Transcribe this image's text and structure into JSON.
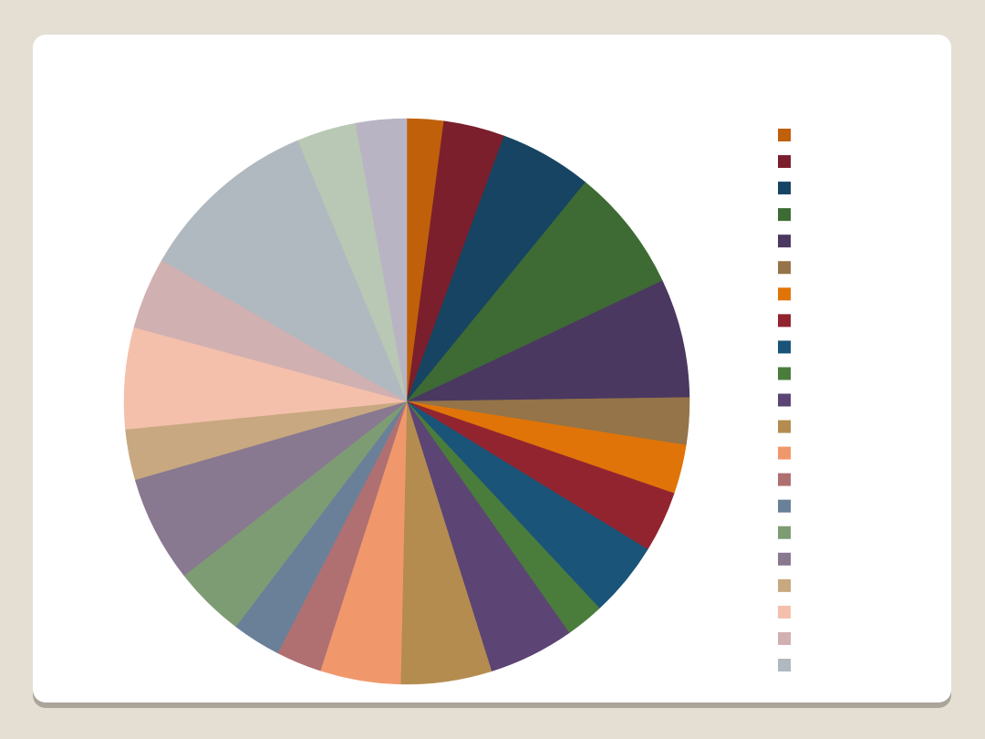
{
  "chart_data": {
    "type": "pie",
    "values": [
      2.1,
      3.5,
      5.3,
      7.1,
      6.8,
      2.7,
      2.8,
      3.5,
      4.3,
      2.2,
      4.9,
      5.2,
      4.6,
      2.6,
      2.8,
      4.1,
      6.1,
      2.9,
      5.8,
      4.1,
      10.4,
      3.4,
      2.9
    ],
    "colors": [
      "#c0600a",
      "#7a1f2b",
      "#164462",
      "#3e6a34",
      "#4a3860",
      "#947448",
      "#e07408",
      "#922430",
      "#1a5478",
      "#4a7c3c",
      "#5c4474",
      "#b48c50",
      "#f0986c",
      "#b07072",
      "#6a8098",
      "#7e9c74",
      "#887890",
      "#c8a880",
      "#f4c0ac",
      "#d0b0b0",
      "#b0b8c0",
      "#b8c8b4",
      "#b8b4c4"
    ]
  }
}
